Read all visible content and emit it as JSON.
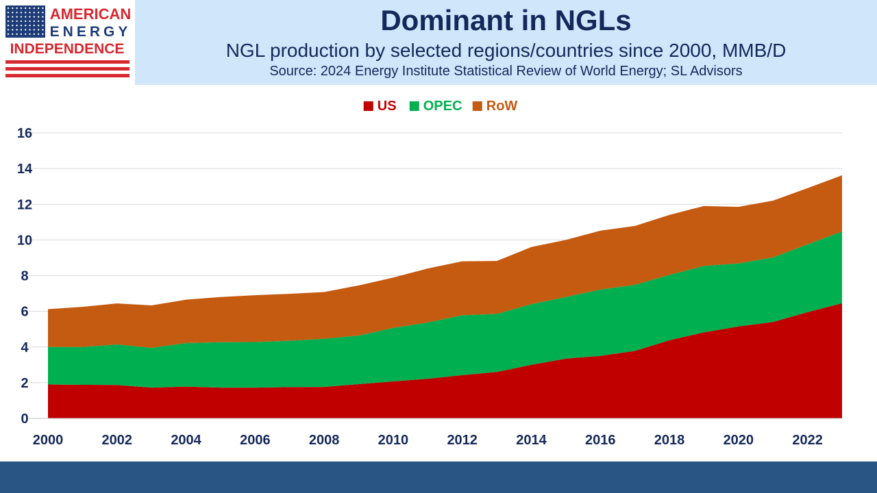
{
  "header": {
    "title": "Dominant in NGLs",
    "subtitle": "NGL production by selected regions/countries since 2000, MMB/D",
    "source": "Source: 2024 Energy Institute Statistical Review of World Energy; SL Advisors"
  },
  "logo": {
    "line1": "AMERICAN",
    "line2": "ENERGY",
    "line3": "INDEPENDENCE",
    "icon": "us-flag-icon",
    "colors": {
      "red": "#d7282f",
      "blue": "#1e3c78"
    }
  },
  "chart_data": {
    "type": "area",
    "stacked": true,
    "x": [
      2000,
      2001,
      2002,
      2003,
      2004,
      2005,
      2006,
      2007,
      2008,
      2009,
      2010,
      2011,
      2012,
      2013,
      2014,
      2015,
      2016,
      2017,
      2018,
      2019,
      2020,
      2021,
      2022,
      2023
    ],
    "series": [
      {
        "name": "US",
        "color": "#c00000",
        "values": [
          1.9,
          1.88,
          1.87,
          1.72,
          1.78,
          1.72,
          1.72,
          1.75,
          1.76,
          1.92,
          2.07,
          2.22,
          2.42,
          2.6,
          3.0,
          3.35,
          3.5,
          3.78,
          4.38,
          4.82,
          5.15,
          5.4,
          5.95,
          6.45
        ]
      },
      {
        "name": "OPEC",
        "color": "#00b050",
        "values": [
          2.1,
          2.12,
          2.27,
          2.23,
          2.44,
          2.55,
          2.56,
          2.6,
          2.7,
          2.72,
          3.0,
          3.15,
          3.36,
          3.25,
          3.4,
          3.45,
          3.72,
          3.7,
          3.66,
          3.72,
          3.53,
          3.62,
          3.8,
          4.02
        ]
      },
      {
        "name": "RoW",
        "color": "#c55a11",
        "values": [
          2.12,
          2.25,
          2.3,
          2.38,
          2.43,
          2.53,
          2.62,
          2.63,
          2.62,
          2.81,
          2.82,
          3.03,
          3.02,
          2.97,
          3.2,
          3.2,
          3.3,
          3.3,
          3.36,
          3.36,
          3.17,
          3.18,
          3.15,
          3.15
        ]
      }
    ],
    "ylim": [
      0,
      16
    ],
    "yticks": [
      0,
      2,
      4,
      6,
      8,
      10,
      12,
      14,
      16
    ],
    "xticks": [
      2000,
      2002,
      2004,
      2006,
      2008,
      2010,
      2012,
      2014,
      2016,
      2018,
      2020,
      2022
    ],
    "legend_position": "top-center",
    "grid": "horizontal"
  }
}
